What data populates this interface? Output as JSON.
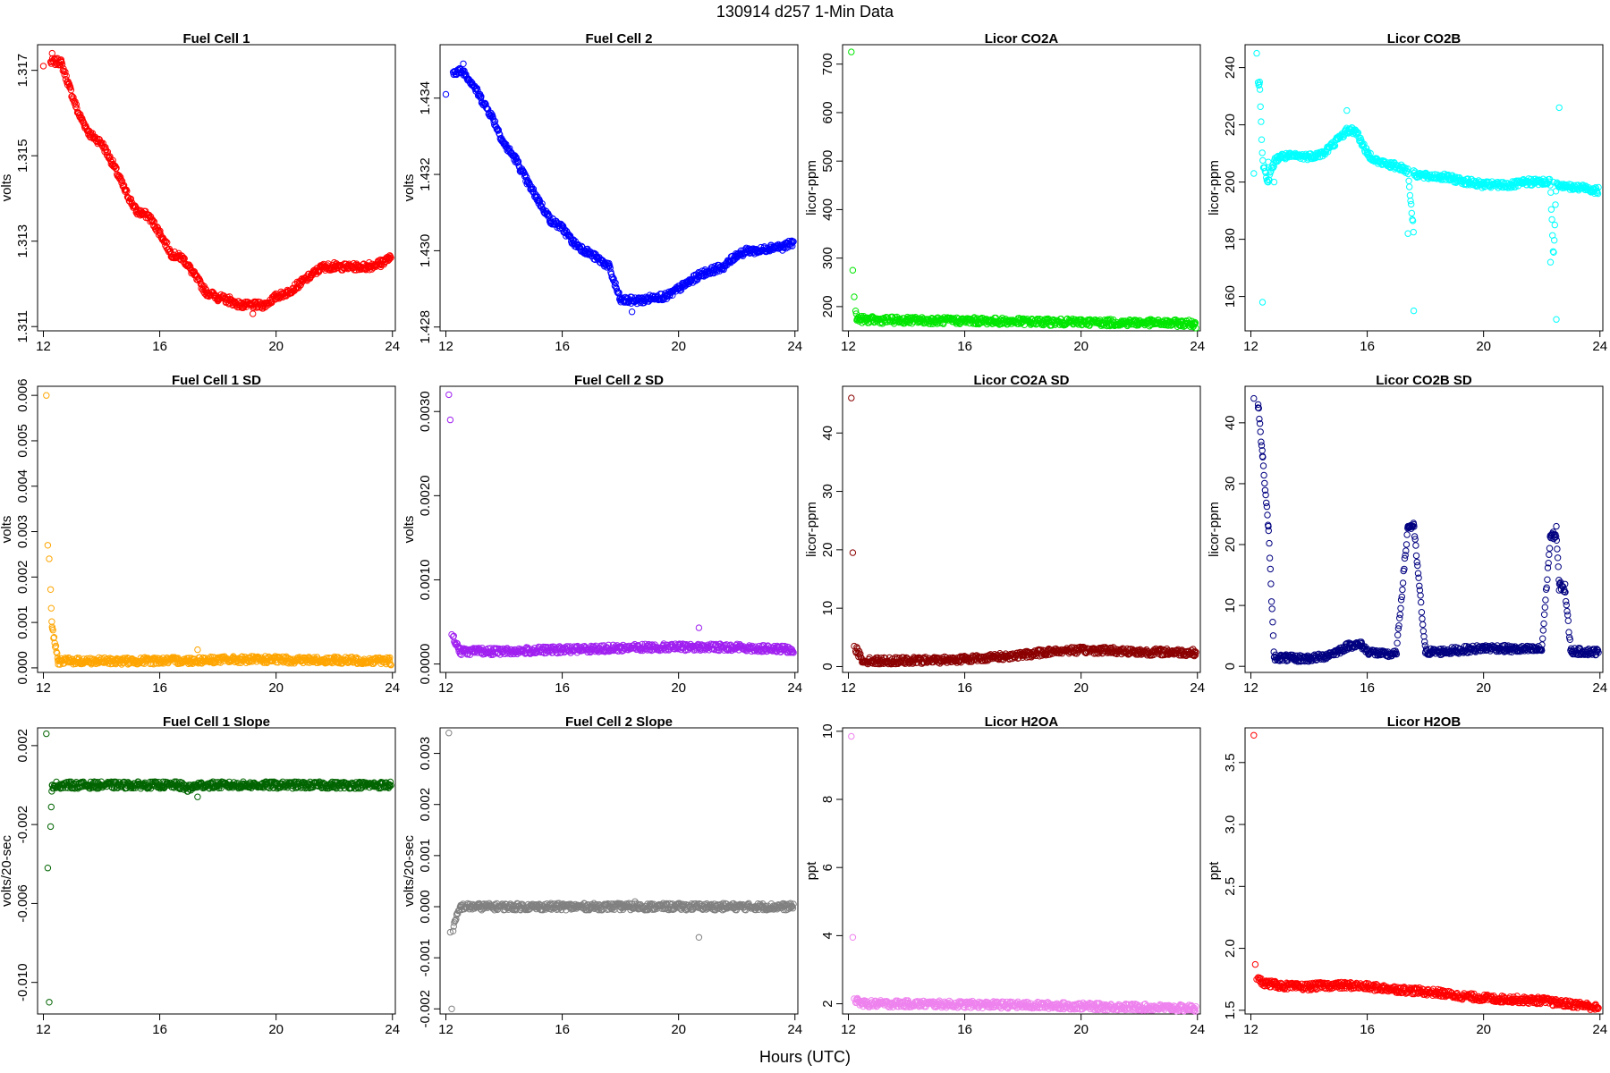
{
  "figure": {
    "title": "130914   d257   1-Min Data",
    "xlabel": "Hours (UTC)"
  },
  "chart_data": [
    {
      "type": "scatter",
      "title": "Fuel Cell 1",
      "ylabel": "volts",
      "color": "#ff0000",
      "xlim": [
        11.8,
        24.1
      ],
      "ylim": [
        1.3109,
        1.3176
      ],
      "xticks": [
        12,
        16,
        20,
        24
      ],
      "yticks": [
        1.311,
        1.313,
        1.315,
        1.317
      ],
      "ytick_labels": [
        "1.311",
        "1.313",
        "1.315",
        "1.317"
      ],
      "x": [
        12.0,
        12.3,
        12.6,
        12.9,
        13.2,
        13.6,
        14.0,
        14.4,
        14.8,
        15.2,
        15.6,
        16.0,
        16.4,
        16.8,
        17.2,
        17.6,
        18.0,
        18.4,
        18.8,
        19.2,
        19.6,
        20.0,
        20.4,
        20.8,
        21.2,
        21.6,
        22.0,
        22.4,
        22.8,
        23.2,
        23.6,
        23.9
      ],
      "y": [
        1.3171,
        1.3174,
        1.3172,
        1.3166,
        1.316,
        1.3155,
        1.3153,
        1.3148,
        1.3142,
        1.3137,
        1.3136,
        1.3132,
        1.3127,
        1.3126,
        1.3122,
        1.3118,
        1.3116,
        1.3117,
        1.3115,
        1.3113,
        1.3115,
        1.3117,
        1.3118,
        1.312,
        1.3122,
        1.3124,
        1.3125,
        1.3124,
        1.3124,
        1.3125,
        1.3124,
        1.3126
      ]
    },
    {
      "type": "scatter",
      "title": "Fuel Cell 2",
      "ylabel": "volts",
      "color": "#0000ff",
      "xlim": [
        11.8,
        24.1
      ],
      "ylim": [
        1.4279,
        1.4354
      ],
      "xticks": [
        12,
        16,
        20,
        24
      ],
      "yticks": [
        1.428,
        1.43,
        1.432,
        1.434
      ],
      "ytick_labels": [
        "1.428",
        "1.430",
        "1.432",
        "1.434"
      ],
      "x": [
        12.0,
        12.3,
        12.6,
        12.9,
        13.2,
        13.6,
        14.0,
        14.4,
        14.8,
        15.2,
        15.6,
        16.0,
        16.4,
        16.8,
        17.2,
        17.6,
        18.0,
        18.4,
        18.8,
        19.2,
        19.6,
        20.0,
        20.4,
        20.8,
        21.2,
        21.6,
        22.0,
        22.4,
        22.8,
        23.2,
        23.6,
        23.9
      ],
      "y": [
        1.4341,
        1.4347,
        1.4349,
        1.4344,
        1.434,
        1.4335,
        1.4328,
        1.4324,
        1.4318,
        1.4313,
        1.4308,
        1.4306,
        1.4302,
        1.43,
        1.4298,
        1.4296,
        1.4287,
        1.4284,
        1.4287,
        1.4288,
        1.4288,
        1.429,
        1.4292,
        1.4294,
        1.4295,
        1.4296,
        1.4299,
        1.43,
        1.43,
        1.4301,
        1.4301,
        1.4302
      ]
    },
    {
      "type": "scatter",
      "title": "Licor CO2A",
      "ylabel": "licor-ppm",
      "color": "#00e600",
      "xlim": [
        11.8,
        24.1
      ],
      "ylim": [
        150,
        740
      ],
      "xticks": [
        12,
        16,
        20,
        24
      ],
      "yticks": [
        200,
        300,
        400,
        500,
        600,
        700
      ],
      "ytick_labels": [
        "200",
        "300",
        "400",
        "500",
        "600",
        "700"
      ],
      "x": [
        12.1,
        12.15,
        12.2,
        12.3,
        13,
        14,
        15,
        16,
        17,
        18,
        19,
        20,
        21,
        22,
        23,
        23.9
      ],
      "y": [
        725,
        275,
        220,
        174,
        172,
        171,
        172,
        171,
        170,
        169,
        168,
        168,
        167,
        167,
        166,
        165
      ]
    },
    {
      "type": "scatter",
      "title": "Licor CO2B",
      "ylabel": "licor-ppm",
      "color": "#00ffff",
      "xlim": [
        11.8,
        24.1
      ],
      "ylim": [
        148,
        248
      ],
      "xticks": [
        12,
        16,
        20,
        24
      ],
      "yticks": [
        160,
        180,
        200,
        220,
        240
      ],
      "ytick_labels": [
        "160",
        "180",
        "200",
        "220",
        "240"
      ],
      "x": [
        12.1,
        12.2,
        12.3,
        12.4,
        12.6,
        12.8,
        13.0,
        13.5,
        14.0,
        14.5,
        15.0,
        15.3,
        15.6,
        15.8,
        16.0,
        16.4,
        16.8,
        17.2,
        17.6,
        18.0,
        18.5,
        19.0,
        19.5,
        20.0,
        20.5,
        21.0,
        21.5,
        22.0,
        22.4,
        22.6,
        22.8,
        23.0,
        23.5,
        23.9,
        17.4,
        17.6,
        22.3,
        22.5
      ],
      "y": [
        203,
        245,
        235,
        158,
        207,
        200,
        209,
        209,
        209,
        210,
        215,
        225,
        218,
        214,
        210,
        207,
        206,
        205,
        204,
        203,
        202,
        201,
        200,
        199,
        198,
        199,
        200,
        200,
        200,
        226,
        199,
        198,
        198,
        197,
        182,
        155,
        172,
        152
      ]
    },
    {
      "type": "scatter",
      "title": "Fuel Cell 1 SD",
      "ylabel": "volts",
      "color": "#ffa500",
      "xlim": [
        11.8,
        24.1
      ],
      "ylim": [
        -0.0001,
        0.0062
      ],
      "xticks": [
        12,
        16,
        20,
        24
      ],
      "yticks": [
        0.0,
        0.001,
        0.002,
        0.003,
        0.004,
        0.005,
        0.006
      ],
      "ytick_labels": [
        "0.000",
        "0.001",
        "0.002",
        "0.003",
        "0.004",
        "0.005",
        "0.006"
      ],
      "x": [
        12.1,
        12.15,
        12.2,
        12.3,
        12.5,
        13,
        14,
        15,
        16,
        17,
        17.3,
        18,
        19,
        20,
        21,
        22,
        23,
        23.9
      ],
      "y": [
        0.006,
        0.0027,
        0.0024,
        0.0009,
        0.00015,
        0.00015,
        0.00014,
        0.00015,
        0.00016,
        0.00016,
        0.0004,
        0.00017,
        0.00018,
        0.00018,
        0.00017,
        0.00017,
        0.00016,
        0.00016
      ]
    },
    {
      "type": "scatter",
      "title": "Fuel Cell 2 SD",
      "ylabel": "volts",
      "color": "#a020f0",
      "xlim": [
        11.8,
        24.1
      ],
      "ylim": [
        -0.0001,
        0.0033
      ],
      "xticks": [
        12,
        16,
        20,
        24
      ],
      "yticks": [
        0.0,
        0.001,
        0.002,
        0.003
      ],
      "ytick_labels": [
        "0.0000",
        "0.0010",
        "0.0020",
        "0.0030"
      ],
      "x": [
        12.1,
        12.15,
        12.2,
        12.5,
        13,
        14,
        15,
        16,
        17,
        18,
        19,
        20,
        20.7,
        21,
        22,
        23,
        23.9
      ],
      "y": [
        0.0032,
        0.0029,
        0.00035,
        0.00015,
        0.00015,
        0.00015,
        0.00016,
        0.00017,
        0.00018,
        0.00019,
        0.0002,
        0.0002,
        0.00043,
        0.0002,
        0.0002,
        0.00018,
        0.00017
      ]
    },
    {
      "type": "scatter",
      "title": "Licor CO2A SD",
      "ylabel": "licor-ppm",
      "color": "#8b0000",
      "xlim": [
        11.8,
        24.1
      ],
      "ylim": [
        -1,
        48
      ],
      "xticks": [
        12,
        16,
        20,
        24
      ],
      "yticks": [
        0,
        10,
        20,
        30,
        40
      ],
      "ytick_labels": [
        "0",
        "10",
        "20",
        "30",
        "40"
      ],
      "x": [
        12.1,
        12.15,
        12.2,
        12.5,
        13,
        14,
        15,
        16,
        17,
        18,
        18.8,
        19.5,
        20,
        21,
        22,
        23,
        23.9
      ],
      "y": [
        46,
        19.5,
        3.5,
        1,
        1,
        1,
        1.1,
        1.3,
        1.6,
        2.0,
        2.5,
        2.8,
        3.0,
        2.8,
        2.5,
        2.5,
        2.4
      ]
    },
    {
      "type": "scatter",
      "title": "Licor CO2B SD",
      "ylabel": "licor-ppm",
      "color": "#000080",
      "xlim": [
        11.8,
        24.1
      ],
      "ylim": [
        -1,
        46
      ],
      "xticks": [
        12,
        16,
        20,
        24
      ],
      "yticks": [
        0,
        10,
        20,
        30,
        40
      ],
      "ytick_labels": [
        "0",
        "10",
        "20",
        "30",
        "40"
      ],
      "x": [
        12.1,
        12.25,
        12.4,
        12.6,
        12.8,
        13.5,
        14.0,
        14.5,
        15.0,
        15.4,
        15.8,
        16.0,
        16.5,
        17.0,
        17.4,
        17.6,
        18.0,
        18.5,
        19.0,
        19.5,
        20.0,
        20.5,
        21.0,
        21.5,
        22.0,
        22.3,
        22.5,
        22.6,
        22.8,
        23.0,
        23.5,
        23.9
      ],
      "y": [
        44,
        43,
        34.5,
        23,
        1.5,
        1.2,
        1.3,
        1.6,
        2.5,
        3.5,
        4,
        2.5,
        2,
        2,
        23,
        23.3,
        2.2,
        2.4,
        2.6,
        2.8,
        3,
        3,
        2.8,
        2.8,
        2.6,
        21.5,
        23,
        12.5,
        13.5,
        2.5,
        2.4,
        2.4
      ]
    },
    {
      "type": "scatter",
      "title": "Fuel Cell 1 Slope",
      "ylabel": "volts/20-sec",
      "color": "#006400",
      "xlim": [
        11.8,
        24.1
      ],
      "ylim": [
        -0.0116,
        0.0029
      ],
      "xticks": [
        12,
        16,
        20,
        24
      ],
      "yticks": [
        -0.01,
        -0.006,
        -0.002,
        0.002
      ],
      "ytick_labels": [
        "-0.010",
        "-0.006",
        "-0.002",
        "0.002"
      ],
      "x": [
        12.1,
        12.15,
        12.2,
        12.3,
        13,
        14,
        15,
        16,
        16.7,
        17,
        17.3,
        18,
        19,
        20,
        21,
        22,
        23,
        23.9
      ],
      "y": [
        0.0026,
        -0.0042,
        -0.011,
        0.0,
        0.0,
        0.0,
        0.0,
        0.0,
        -0.0002,
        0.0,
        -0.0006,
        0.0,
        0.0,
        0.0,
        0.0,
        0.0,
        0.0,
        0.0
      ]
    },
    {
      "type": "scatter",
      "title": "Fuel Cell 2 Slope",
      "ylabel": "volts/20-sec",
      "color": "#808080",
      "xlim": [
        11.8,
        24.1
      ],
      "ylim": [
        -0.0021,
        0.0035
      ],
      "xticks": [
        12,
        16,
        20,
        24
      ],
      "yticks": [
        -0.002,
        -0.001,
        0.0,
        0.001,
        0.002,
        0.003
      ],
      "ytick_labels": [
        "-0.002",
        "-0.001",
        "0.000",
        "0.001",
        "0.002",
        "0.003"
      ],
      "x": [
        12.1,
        12.15,
        12.2,
        12.5,
        13,
        14,
        15,
        16,
        17,
        18,
        18.5,
        19,
        20,
        20.7,
        21,
        22,
        23,
        23.9
      ],
      "y": [
        0.0034,
        -0.0005,
        -0.002,
        0.0,
        0.0,
        0.0,
        0.0,
        0.0,
        0.0,
        0.0,
        0.0001,
        0.0,
        0.0,
        -0.0006,
        0.0,
        0.0,
        0.0,
        0.0
      ]
    },
    {
      "type": "scatter",
      "title": "Licor H2OA",
      "ylabel": "ppt",
      "color": "#ee82ee",
      "xlim": [
        11.8,
        24.1
      ],
      "ylim": [
        1.7,
        10.1
      ],
      "xticks": [
        12,
        16,
        20,
        24
      ],
      "yticks": [
        2,
        4,
        6,
        8,
        10
      ],
      "ytick_labels": [
        "2",
        "4",
        "6",
        "8",
        "10"
      ],
      "x": [
        12.1,
        12.15,
        12.2,
        12.5,
        13,
        14,
        15,
        16,
        17,
        18,
        19,
        20,
        21,
        22,
        23,
        23.9
      ],
      "y": [
        9.85,
        3.95,
        2.15,
        2.0,
        2.0,
        1.99,
        2.0,
        1.98,
        1.97,
        1.96,
        1.95,
        1.93,
        1.91,
        1.9,
        1.88,
        1.87
      ]
    },
    {
      "type": "scatter",
      "title": "Licor H2OB",
      "ylabel": "ppt",
      "color": "#ff0000",
      "xlim": [
        11.8,
        24.1
      ],
      "ylim": [
        1.47,
        3.78
      ],
      "xticks": [
        12,
        16,
        20,
        24
      ],
      "yticks": [
        1.5,
        2.0,
        2.5,
        3.0,
        3.5
      ],
      "ytick_labels": [
        "1.5",
        "2.0",
        "2.5",
        "3.0",
        "3.5"
      ],
      "x": [
        12.1,
        12.15,
        12.2,
        12.5,
        13,
        13.5,
        14,
        14.5,
        15,
        15.5,
        16,
        16.5,
        17,
        17.5,
        18,
        18.5,
        19,
        19.5,
        20,
        20.5,
        21,
        21.5,
        22,
        22.5,
        23,
        23.5,
        23.9
      ],
      "y": [
        3.72,
        1.87,
        1.75,
        1.72,
        1.7,
        1.69,
        1.69,
        1.7,
        1.71,
        1.7,
        1.69,
        1.68,
        1.67,
        1.66,
        1.65,
        1.64,
        1.62,
        1.61,
        1.6,
        1.59,
        1.58,
        1.59,
        1.58,
        1.56,
        1.55,
        1.54,
        1.52
      ]
    }
  ]
}
